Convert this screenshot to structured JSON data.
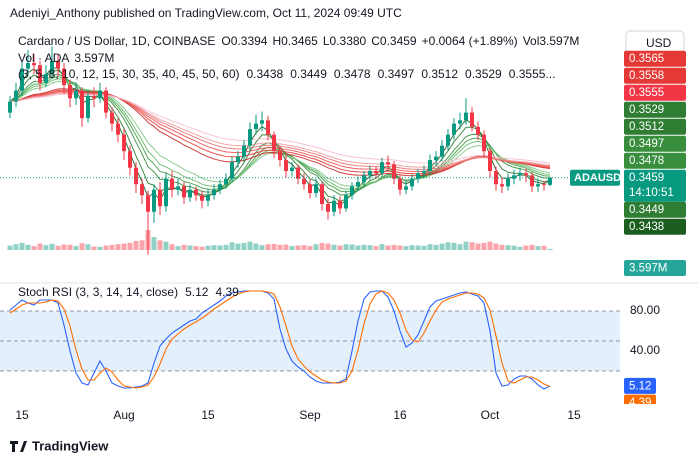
{
  "header": {
    "publisher": "Adeniyi_Anthony published on TradingView.com, Oct 11, 2024 09:49 UTC"
  },
  "currency": "USD",
  "footer": {
    "brand": "TradingView"
  },
  "chart_data": [
    {
      "type": "candlestick",
      "title": "Cardano / US Dollar, 1D, COINBASE",
      "ohlc_legend": [
        "O0.3394",
        "H0.3465",
        "L0.3380",
        "C0.3459",
        "+0.0064 (+1.89%)",
        "Vol3.597M"
      ],
      "symbol": "ADAUSD",
      "countdown": "14:10:51",
      "volume_title": "Vol · ADA",
      "volume_last_label": "3.597M",
      "up_color": "#089981",
      "down_color": "#f23645",
      "categories": [
        null,
        null,
        "15",
        null,
        null,
        null,
        null,
        null,
        null,
        null,
        null,
        null,
        null,
        null,
        null,
        null,
        null,
        null,
        null,
        "Aug",
        null,
        null,
        null,
        null,
        null,
        null,
        null,
        null,
        null,
        null,
        null,
        null,
        null,
        "15",
        null,
        null,
        null,
        null,
        null,
        null,
        null,
        null,
        null,
        null,
        null,
        null,
        null,
        null,
        null,
        null,
        "Sep",
        null,
        null,
        null,
        null,
        null,
        null,
        null,
        null,
        null,
        null,
        null,
        null,
        null,
        null,
        "16",
        null,
        null,
        null,
        null,
        null,
        null,
        null,
        null,
        null,
        null,
        null,
        null,
        null,
        null,
        "Oct",
        null,
        null,
        null,
        null,
        null,
        null,
        null,
        null,
        null,
        null
      ],
      "future_categories": [
        null,
        null,
        null,
        "15"
      ],
      "open": [
        0.405,
        0.415,
        0.425,
        0.445,
        0.45,
        0.448,
        0.432,
        0.44,
        0.452,
        0.445,
        0.43,
        0.418,
        0.425,
        0.4,
        0.42,
        0.418,
        0.425,
        0.405,
        0.395,
        0.385,
        0.37,
        0.355,
        0.34,
        0.33,
        0.315,
        0.335,
        0.32,
        0.345,
        0.335,
        0.338,
        0.328,
        0.335,
        0.33,
        0.325,
        0.33,
        0.335,
        0.34,
        0.345,
        0.36,
        0.365,
        0.375,
        0.39,
        0.395,
        0.398,
        0.385,
        0.37,
        0.362,
        0.352,
        0.355,
        0.345,
        0.34,
        0.332,
        0.34,
        0.322,
        0.315,
        0.325,
        0.318,
        0.33,
        0.338,
        0.342,
        0.348,
        0.352,
        0.35,
        0.36,
        0.358,
        0.345,
        0.335,
        0.338,
        0.345,
        0.35,
        0.352,
        0.362,
        0.365,
        0.375,
        0.385,
        0.395,
        0.398,
        0.405,
        0.392,
        0.385,
        0.37,
        0.352,
        0.34,
        0.338,
        0.345,
        0.348,
        0.35,
        0.348,
        0.338,
        0.34,
        0.3394
      ],
      "high": [
        0.42,
        0.432,
        0.452,
        0.462,
        0.458,
        0.452,
        0.448,
        0.465,
        0.458,
        0.45,
        0.435,
        0.432,
        0.428,
        0.425,
        0.428,
        0.432,
        0.428,
        0.41,
        0.4,
        0.39,
        0.375,
        0.36,
        0.345,
        0.334,
        0.34,
        0.342,
        0.35,
        0.352,
        0.345,
        0.342,
        0.34,
        0.338,
        0.334,
        0.336,
        0.34,
        0.344,
        0.35,
        0.365,
        0.37,
        0.38,
        0.396,
        0.403,
        0.406,
        0.402,
        0.388,
        0.374,
        0.366,
        0.36,
        0.358,
        0.35,
        0.344,
        0.345,
        0.342,
        0.327,
        0.33,
        0.329,
        0.334,
        0.342,
        0.347,
        0.352,
        0.357,
        0.356,
        0.364,
        0.366,
        0.361,
        0.348,
        0.343,
        0.349,
        0.354,
        0.357,
        0.367,
        0.37,
        0.38,
        0.39,
        0.4,
        0.405,
        0.418,
        0.41,
        0.397,
        0.389,
        0.373,
        0.356,
        0.346,
        0.35,
        0.353,
        0.355,
        0.354,
        0.351,
        0.345,
        0.343,
        0.3465
      ],
      "low": [
        0.4,
        0.41,
        0.42,
        0.438,
        0.44,
        0.425,
        0.428,
        0.436,
        0.438,
        0.422,
        0.41,
        0.412,
        0.392,
        0.396,
        0.41,
        0.414,
        0.4,
        0.388,
        0.378,
        0.362,
        0.348,
        0.332,
        0.322,
        0.276,
        0.305,
        0.312,
        0.315,
        0.328,
        0.33,
        0.322,
        0.324,
        0.325,
        0.318,
        0.32,
        0.326,
        0.331,
        0.336,
        0.342,
        0.355,
        0.36,
        0.37,
        0.385,
        0.388,
        0.38,
        0.364,
        0.356,
        0.346,
        0.347,
        0.34,
        0.335,
        0.327,
        0.328,
        0.316,
        0.308,
        0.311,
        0.313,
        0.315,
        0.326,
        0.334,
        0.338,
        0.344,
        0.345,
        0.347,
        0.352,
        0.34,
        0.33,
        0.331,
        0.334,
        0.341,
        0.346,
        0.349,
        0.357,
        0.361,
        0.371,
        0.38,
        0.39,
        0.394,
        0.388,
        0.38,
        0.364,
        0.346,
        0.334,
        0.332,
        0.334,
        0.34,
        0.343,
        0.342,
        0.333,
        0.333,
        0.334,
        0.338
      ],
      "close": [
        0.415,
        0.425,
        0.445,
        0.45,
        0.448,
        0.432,
        0.44,
        0.452,
        0.445,
        0.43,
        0.418,
        0.425,
        0.4,
        0.42,
        0.418,
        0.425,
        0.405,
        0.395,
        0.385,
        0.37,
        0.355,
        0.34,
        0.33,
        0.315,
        0.335,
        0.32,
        0.345,
        0.335,
        0.338,
        0.328,
        0.335,
        0.33,
        0.325,
        0.33,
        0.335,
        0.34,
        0.345,
        0.36,
        0.365,
        0.375,
        0.39,
        0.395,
        0.398,
        0.385,
        0.37,
        0.362,
        0.352,
        0.355,
        0.345,
        0.34,
        0.332,
        0.34,
        0.322,
        0.315,
        0.325,
        0.318,
        0.33,
        0.338,
        0.342,
        0.348,
        0.352,
        0.35,
        0.36,
        0.358,
        0.345,
        0.335,
        0.338,
        0.345,
        0.35,
        0.352,
        0.362,
        0.365,
        0.375,
        0.385,
        0.395,
        0.398,
        0.405,
        0.392,
        0.385,
        0.37,
        0.352,
        0.34,
        0.338,
        0.345,
        0.348,
        0.35,
        0.348,
        0.338,
        0.34,
        0.3394,
        0.3459
      ],
      "volume": [
        14,
        18,
        22,
        16,
        12,
        20,
        15,
        19,
        13,
        17,
        16,
        12,
        21,
        18,
        11,
        10,
        14,
        16,
        18,
        20,
        22,
        28,
        30,
        62,
        40,
        30,
        26,
        18,
        12,
        16,
        14,
        12,
        10,
        13,
        15,
        14,
        16,
        24,
        20,
        22,
        26,
        20,
        15,
        18,
        19,
        16,
        17,
        12,
        14,
        15,
        12,
        18,
        22,
        20,
        16,
        14,
        18,
        17,
        14,
        16,
        15,
        12,
        18,
        14,
        16,
        14,
        12,
        15,
        14,
        13,
        18,
        16,
        20,
        24,
        22,
        18,
        26,
        24,
        20,
        22,
        26,
        20,
        16,
        15,
        13,
        10,
        14,
        16,
        12,
        13,
        3.597
      ],
      "ylim": [
        0.273,
        0.48
      ],
      "ribbon": {
        "params": "(3, 5, 8, 10, 12, 15, 30, 35, 40, 45, 50, 60)",
        "periods": [
          3,
          5,
          8,
          10,
          12,
          15,
          30,
          35,
          40,
          45,
          50,
          60
        ],
        "colors": [
          "#1b5e20",
          "#2e7d32",
          "#388e3c",
          "#43a047",
          "#66bb6a",
          "#81c784",
          "#c62828",
          "#e53935",
          "#ef5350",
          "#e57373",
          "#ef9a9a",
          "#f8bbd0"
        ],
        "legend_values": [
          0.3438,
          0.3449,
          0.3478,
          0.3497,
          0.3512,
          0.3529,
          {
            "value": 0.3555,
            "label": "0.3555..."
          }
        ],
        "legend_colors": [
          "#2e7d32",
          "#2e7d32",
          "#388e3c",
          "#388e3c",
          "#43a047",
          "#43a047",
          "#e53935"
        ]
      },
      "axis_labels_above": [
        {
          "value": 0.3565,
          "color": "#e53935"
        },
        {
          "value": 0.3558,
          "color": "#e53935"
        },
        {
          "value": 0.3555,
          "color": "#f23645"
        },
        {
          "value": 0.3529,
          "color": "#2e7d32"
        },
        {
          "value": 0.3512,
          "color": "#2e7d32"
        },
        {
          "value": 0.3497,
          "color": "#388e3c"
        },
        {
          "value": 0.3478,
          "color": "#388e3c"
        }
      ],
      "axis_labels_below": [
        {
          "value": 0.3449,
          "color": "#2e7d32"
        },
        {
          "value": 0.3438,
          "color": "#1b5e20"
        }
      ]
    },
    {
      "type": "line",
      "title": "Stoch RSI (3, 3, 14, 14, close)",
      "ylim": [
        -9,
        106
      ],
      "yticks": [
        {
          "value": 80,
          "label": "80.00"
        },
        {
          "value": 40,
          "label": "40.00"
        }
      ],
      "bands": [
        80,
        50,
        20
      ],
      "band_fill": "#e3f0fc",
      "series": [
        {
          "color": "#2962ff",
          "values": [
            81,
            86,
            91,
            88,
            86,
            91,
            91,
            91,
            88,
            66,
            40,
            18,
            8,
            6,
            18,
            30,
            20,
            8,
            5,
            3,
            3,
            4,
            5,
            8,
            28,
            45,
            52,
            58,
            62,
            66,
            70,
            72,
            78,
            82,
            86,
            90,
            95,
            98,
            99,
            100,
            100,
            100,
            100,
            98,
            92,
            62,
            42,
            30,
            24,
            20,
            14,
            10,
            8,
            8,
            8,
            9,
            12,
            40,
            70,
            92,
            99,
            100,
            100,
            94,
            80,
            60,
            44,
            48,
            56,
            70,
            84,
            90,
            92,
            94,
            96,
            98,
            99,
            97,
            95,
            88,
            60,
            18,
            5,
            6,
            12,
            15,
            15,
            12,
            6,
            2,
            5.12
          ]
        },
        {
          "color": "#ff6d00",
          "values": [
            78,
            82,
            86,
            88,
            88,
            88,
            89,
            91,
            90,
            82,
            65,
            41,
            22,
            11,
            11,
            18,
            23,
            19,
            11,
            5,
            4,
            3,
            4,
            6,
            14,
            27,
            42,
            52,
            57,
            62,
            66,
            69,
            73,
            77,
            82,
            86,
            90,
            94,
            97,
            99,
            100,
            100,
            100,
            99,
            97,
            84,
            65,
            45,
            32,
            25,
            19,
            15,
            11,
            9,
            8,
            8,
            10,
            20,
            41,
            67,
            87,
            97,
            100,
            98,
            91,
            78,
            61,
            51,
            49,
            58,
            70,
            81,
            89,
            92,
            94,
            96,
            98,
            98,
            97,
            93,
            81,
            55,
            28,
            10,
            8,
            11,
            14,
            14,
            11,
            7,
            4.39
          ]
        }
      ]
    }
  ]
}
